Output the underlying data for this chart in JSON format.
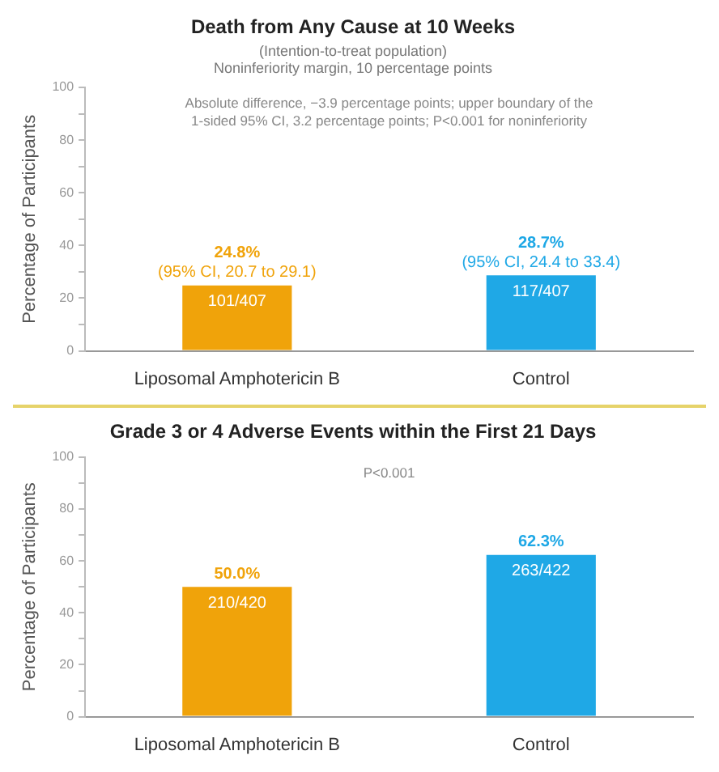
{
  "chart_data": [
    {
      "type": "bar",
      "title": "Death from Any Cause at 10 Weeks",
      "subtitle": "(Intention-to-treat population)\nNoninferiority margin, 10 percentage points",
      "ylabel": "Percentage of Participants",
      "categories": [
        "Liposomal Amphotericin B",
        "Control"
      ],
      "values": [
        24.8,
        28.7
      ],
      "colors": [
        "#f0a30a",
        "#1fa8e6"
      ],
      "value_labels": [
        "24.8%\n(95% CI, 20.7 to 29.1)",
        "28.7%\n(95% CI, 24.4 to 33.4)"
      ],
      "annotations": [
        "Absolute difference, −3.9 percentage points; upper boundary of the\n1-sided 95% CI, 3.2 percentage points; P<0.001 for noninferiority",
        {
          "text": "101/407",
          "x": "Liposomal Amphotericin B",
          "y": 24.8
        },
        {
          "text": "117/407",
          "x": "Control",
          "y": 28.7
        }
      ],
      "ylim": [
        0,
        100
      ],
      "yticks": [
        0,
        {
          "value": 10,
          "label": null
        },
        20,
        {
          "value": 30,
          "label": null
        },
        40,
        {
          "value": 50,
          "label": null
        },
        60,
        {
          "value": 70,
          "label": null
        },
        80,
        {
          "value": 90,
          "label": null
        },
        100
      ]
    },
    {
      "type": "bar",
      "title": "Grade 3 or 4 Adverse Events within the First 21 Days",
      "ylabel": "Percentage of Participants",
      "categories": [
        "Liposomal Amphotericin B",
        "Control"
      ],
      "values": [
        50.0,
        62.3
      ],
      "colors": [
        "#f0a30a",
        "#1fa8e6"
      ],
      "value_labels": [
        "50.0%",
        "62.3%"
      ],
      "annotations": [
        "P<0.001",
        {
          "text": "210/420",
          "x": "Liposomal Amphotericin B",
          "y": 50.0
        },
        {
          "text": "263/422",
          "x": "Control",
          "y": 62.3
        }
      ],
      "ylim": [
        0,
        100
      ],
      "yticks": [
        0,
        {
          "value": 10,
          "label": null
        },
        20,
        {
          "value": 30,
          "label": null
        },
        40,
        {
          "value": 50,
          "label": null
        },
        60,
        {
          "value": 70,
          "label": null
        },
        80,
        {
          "value": 90,
          "label": null
        },
        100
      ]
    }
  ]
}
